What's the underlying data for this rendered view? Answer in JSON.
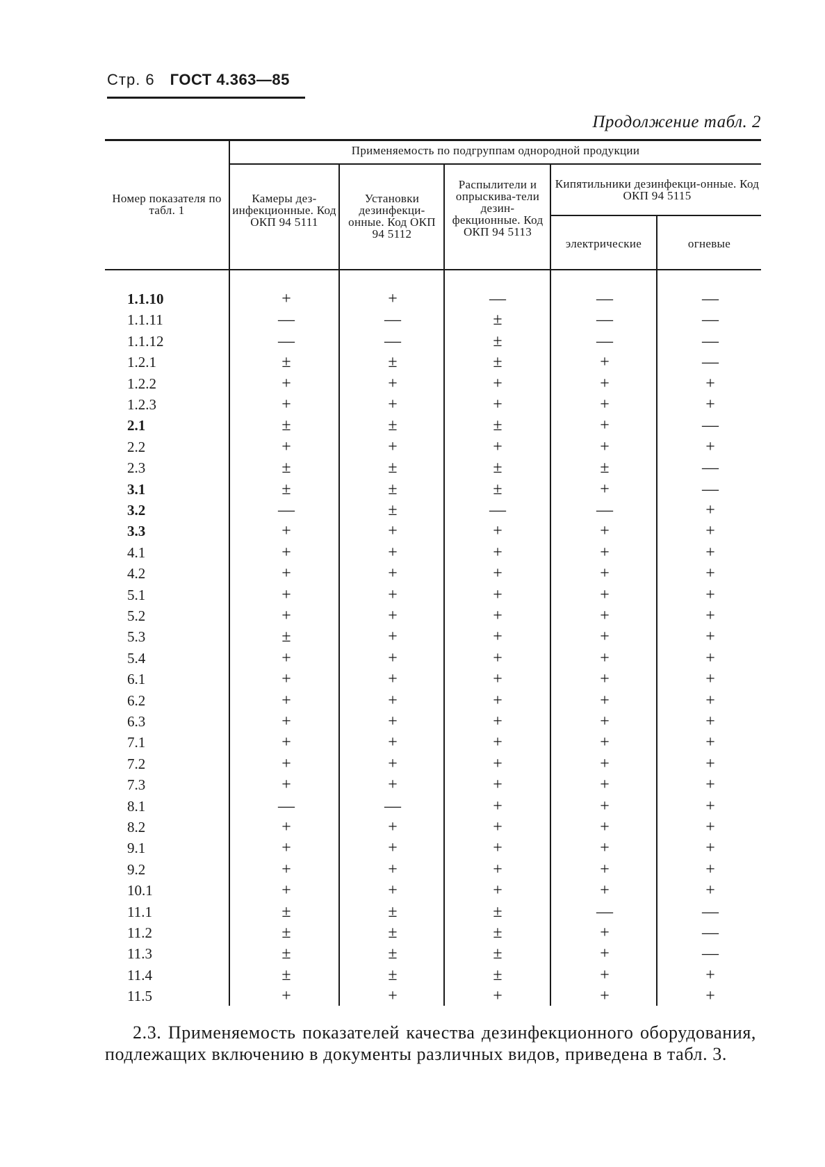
{
  "page_header": {
    "page": "Стр. 6",
    "standard": "ГОСТ 4.363—85"
  },
  "continuation": "Продолжение табл. 2",
  "table": {
    "col_indicator": "Номер показателя по табл. 1",
    "group_header": "Применяемость по подгруппам однородной продукции",
    "columns": [
      "Камеры дез-инфекционные. Код ОКП 94 5111",
      "Установки дезинфекци-онные. Код ОКП 94 5112",
      "Распылители и опрыскива-тели дезин-фекционные. Код ОКП 94 5113"
    ],
    "boilers_header": "Кипятильники дезинфекци-онные. Код ОКП 94 5115",
    "boilers_sub": [
      "электрические",
      "огневые"
    ],
    "rows": [
      {
        "id": "1.1.10",
        "v": [
          "+",
          "+",
          "—",
          "—",
          "—"
        ]
      },
      {
        "id": "1.1.11",
        "v": [
          "—",
          "—",
          "±",
          "—",
          "—"
        ]
      },
      {
        "id": "1.1.12",
        "v": [
          "—",
          "—",
          "±",
          "—",
          "—"
        ]
      },
      {
        "id": "1.2.1",
        "v": [
          "±",
          "±",
          "±",
          "+",
          "—"
        ]
      },
      {
        "id": "1.2.2",
        "v": [
          "+",
          "+",
          "+",
          "+",
          "+"
        ]
      },
      {
        "id": "1.2.3",
        "v": [
          "+",
          "+",
          "+",
          "+",
          "+"
        ]
      },
      {
        "id": "2.1",
        "v": [
          "±",
          "±",
          "±",
          "+",
          "—"
        ]
      },
      {
        "id": "2.2",
        "v": [
          "+",
          "+",
          "+",
          "+",
          "+"
        ]
      },
      {
        "id": "2.3",
        "v": [
          "±",
          "±",
          "±",
          "±",
          "—"
        ]
      },
      {
        "id": "3.1",
        "v": [
          "±",
          "±",
          "±",
          "+",
          "—"
        ]
      },
      {
        "id": "3.2",
        "v": [
          "—",
          "±",
          "—",
          "—",
          "+"
        ]
      },
      {
        "id": "3.3",
        "v": [
          "+",
          "+",
          "+",
          "+",
          "+"
        ]
      },
      {
        "id": "4.1",
        "v": [
          "+",
          "+",
          "+",
          "+",
          "+"
        ]
      },
      {
        "id": "4.2",
        "v": [
          "+",
          "+",
          "+",
          "+",
          "+"
        ]
      },
      {
        "id": "5.1",
        "v": [
          "+",
          "+",
          "+",
          "+",
          "+"
        ]
      },
      {
        "id": "5.2",
        "v": [
          "+",
          "+",
          "+",
          "+",
          "+"
        ]
      },
      {
        "id": "5.3",
        "v": [
          "±",
          "+",
          "+",
          "+",
          "+"
        ]
      },
      {
        "id": "5.4",
        "v": [
          "+",
          "+",
          "+",
          "+",
          "+"
        ]
      },
      {
        "id": "6.1",
        "v": [
          "+",
          "+",
          "+",
          "+",
          "+"
        ]
      },
      {
        "id": "6.2",
        "v": [
          "+",
          "+",
          "+",
          "+",
          "+"
        ]
      },
      {
        "id": "6.3",
        "v": [
          "+",
          "+",
          "+",
          "+",
          "+"
        ]
      },
      {
        "id": "7.1",
        "v": [
          "+",
          "+",
          "+",
          "+",
          "+"
        ]
      },
      {
        "id": "7.2",
        "v": [
          "+",
          "+",
          "+",
          "+",
          "+"
        ]
      },
      {
        "id": "7.3",
        "v": [
          "+",
          "+",
          "+",
          "+",
          "+"
        ]
      },
      {
        "id": "8.1",
        "v": [
          "—",
          "—",
          "+",
          "+",
          "+"
        ]
      },
      {
        "id": "8.2",
        "v": [
          "+",
          "+",
          "+",
          "+",
          "+"
        ]
      },
      {
        "id": "9.1",
        "v": [
          "+",
          "+",
          "+",
          "+",
          "+"
        ]
      },
      {
        "id": "9.2",
        "v": [
          "+",
          "+",
          "+",
          "+",
          "+"
        ]
      },
      {
        "id": "10.1",
        "v": [
          "+",
          "+",
          "+",
          "+",
          "+"
        ]
      },
      {
        "id": "11.1",
        "v": [
          "±",
          "±",
          "±",
          "—",
          "—"
        ]
      },
      {
        "id": "11.2",
        "v": [
          "±",
          "±",
          "±",
          "+",
          "—"
        ]
      },
      {
        "id": "11.3",
        "v": [
          "±",
          "±",
          "±",
          "+",
          "—"
        ]
      },
      {
        "id": "11.4",
        "v": [
          "±",
          "±",
          "±",
          "+",
          "+"
        ]
      },
      {
        "id": "11.5",
        "v": [
          "+",
          "+",
          "+",
          "+",
          "+"
        ]
      }
    ]
  },
  "paragraph": "2.3. Применяемость показателей качества дезинфекционного оборудования, подлежащих включению в документы различных видов, приведена в табл. 3."
}
